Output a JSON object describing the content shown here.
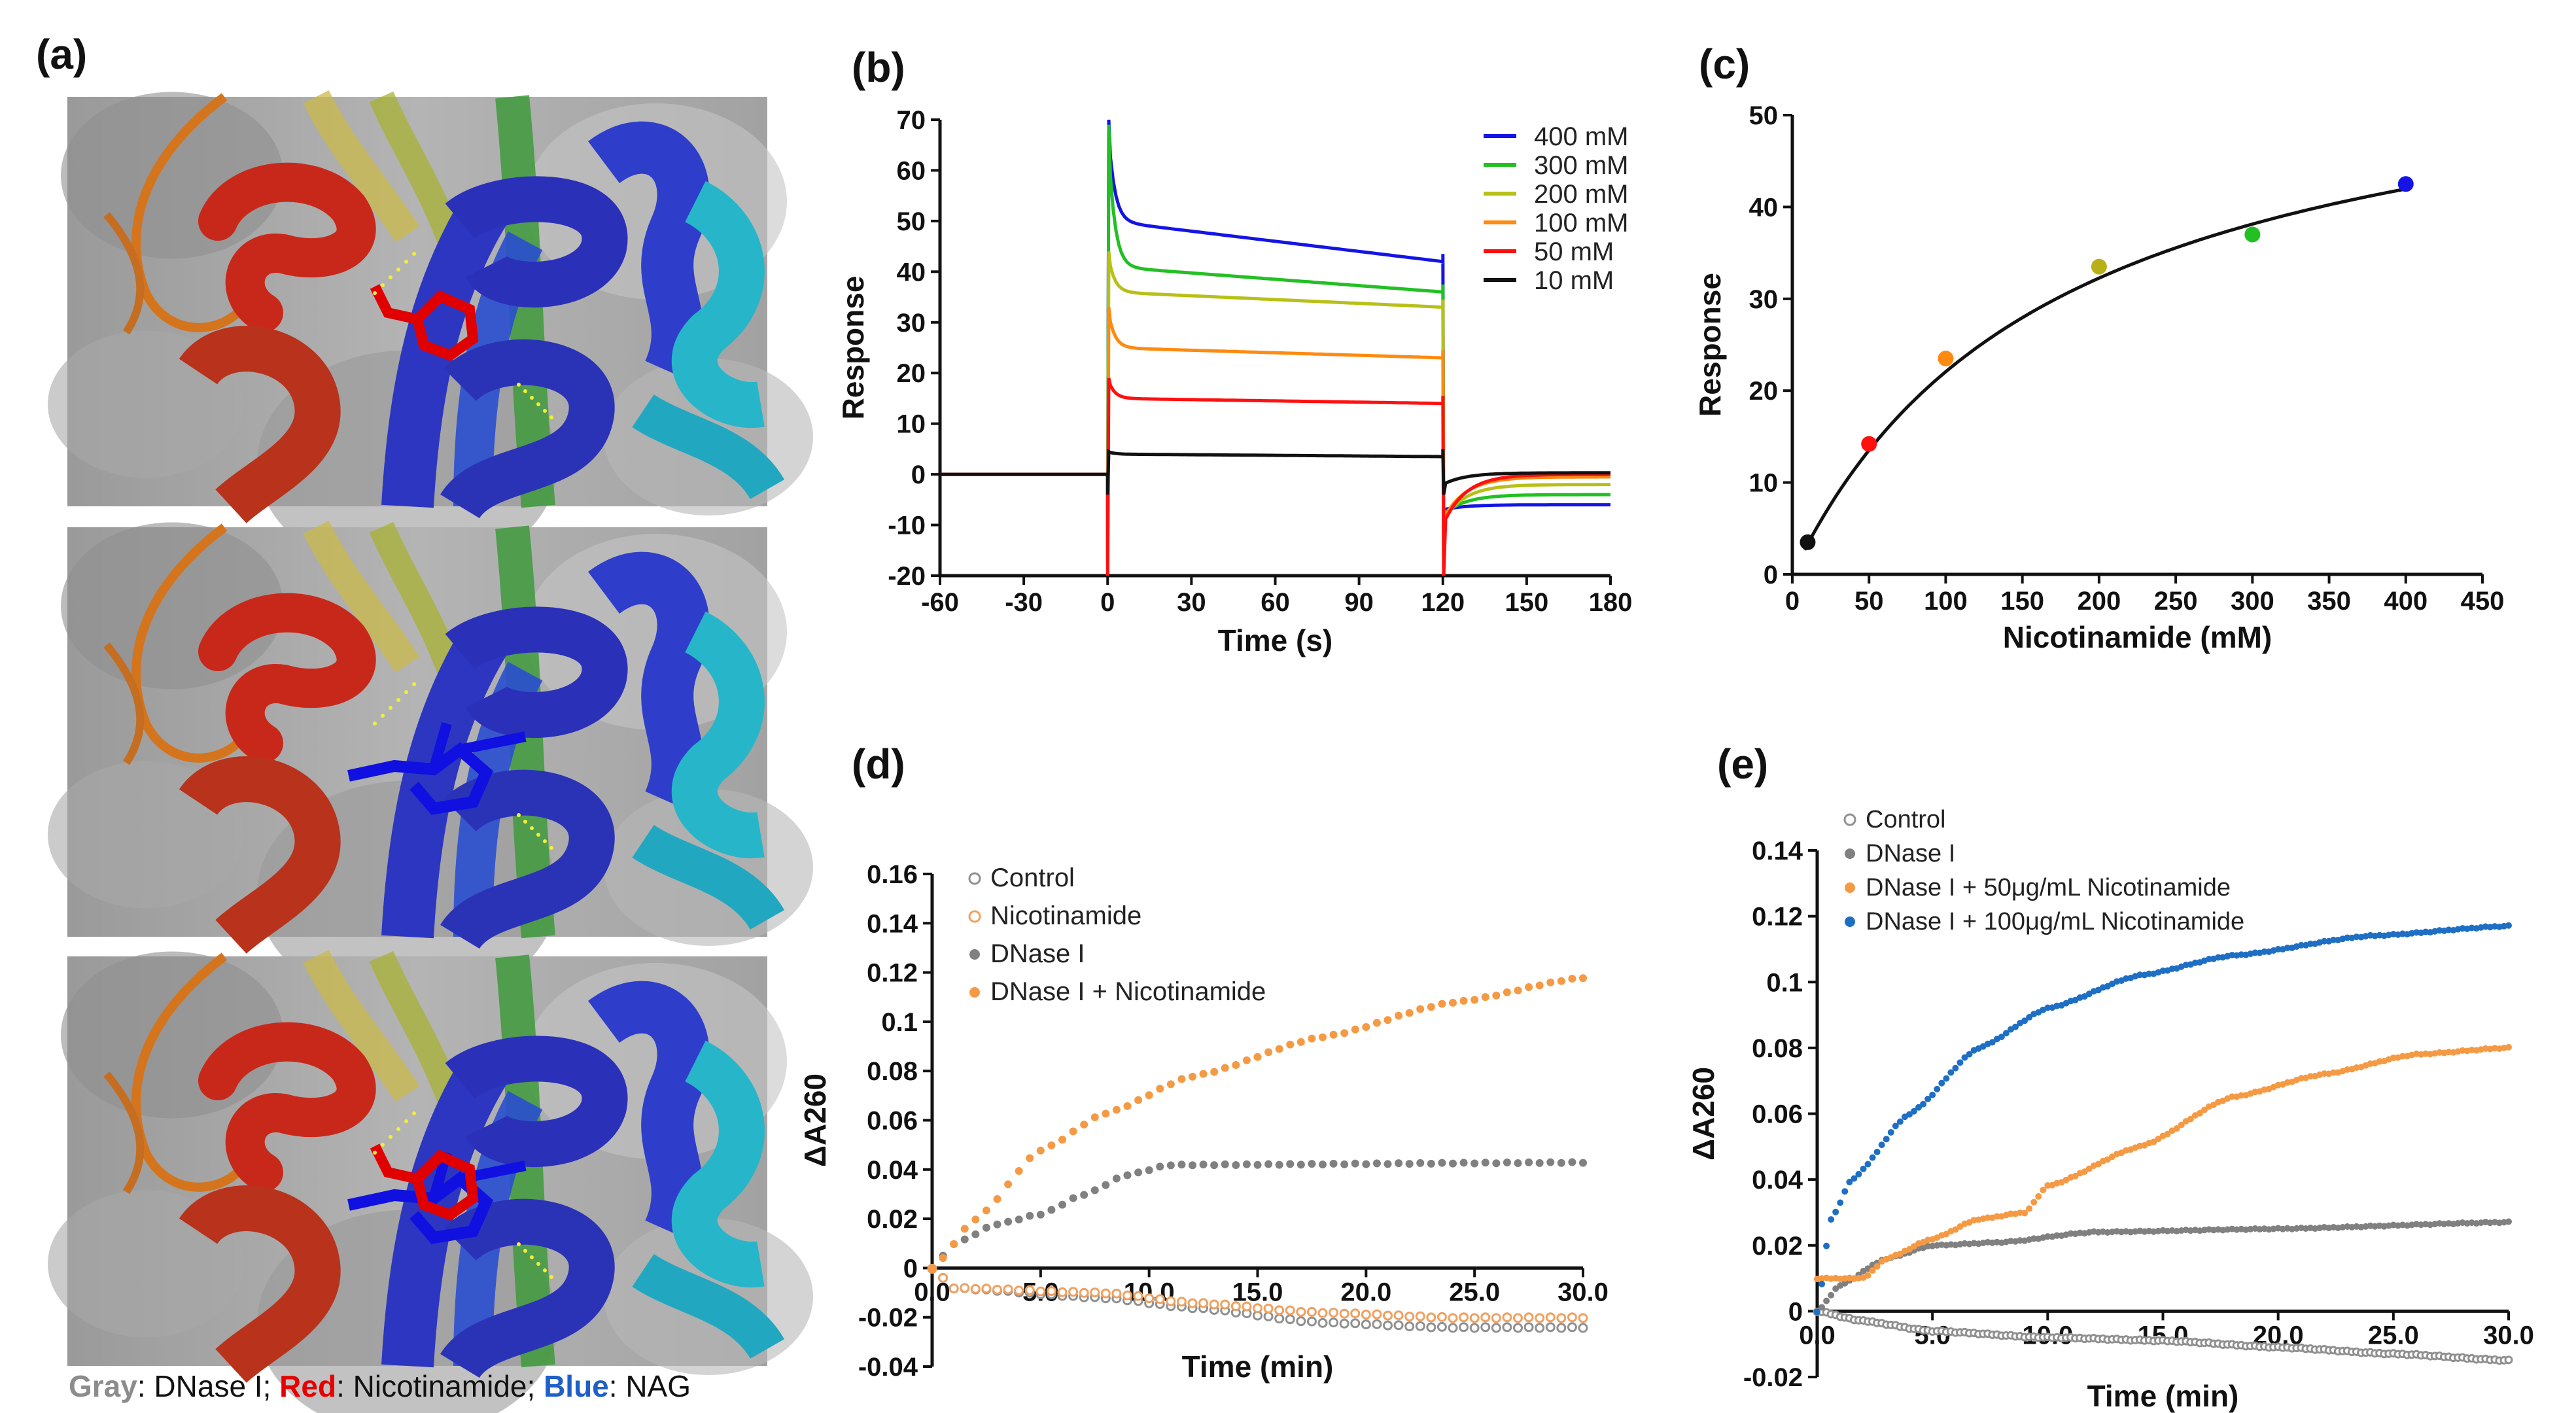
{
  "panels": {
    "a": {
      "label": "(a)",
      "caption": [
        {
          "text": "Gray",
          "color": "#8c8c8c"
        },
        {
          "text": ": DNase I; ",
          "color": "#111111"
        },
        {
          "text": "Red",
          "color": "#e60000"
        },
        {
          "text": ": Nicotinamide; ",
          "color": "#111111"
        },
        {
          "text": "Blue",
          "color": "#1f5fc8"
        },
        {
          "text": ": NAG",
          "color": "#111111"
        }
      ],
      "image_views": [
        "nicotinamide-bound",
        "nag-bound",
        "overlay"
      ]
    },
    "b": {
      "label": "(b)"
    },
    "c": {
      "label": "(c)"
    },
    "d": {
      "label": "(d)"
    },
    "e": {
      "label": "(e)"
    }
  },
  "chart_data": [
    {
      "id": "b",
      "type": "line",
      "xlabel": "Time (s)",
      "ylabel": "Response",
      "xlim": [
        -60,
        180
      ],
      "ylim": [
        -20,
        70
      ],
      "xticks": [
        -60,
        -30,
        0,
        30,
        60,
        90,
        120,
        150,
        180
      ],
      "yticks": [
        -20,
        -10,
        0,
        10,
        20,
        30,
        40,
        50,
        60,
        70
      ],
      "legend_position": "top-right",
      "series": [
        {
          "name": "400 mM",
          "color": "#1414e6",
          "peak": 70,
          "dip": -14,
          "plateau_start": 50,
          "plateau_end": 42,
          "dissoc_end": -6
        },
        {
          "name": "300 mM",
          "color": "#22c022",
          "peak": 69,
          "dip": -16,
          "plateau_start": 41,
          "plateau_end": 36,
          "dissoc_end": -4
        },
        {
          "name": "200 mM",
          "color": "#b8c018",
          "peak": 44,
          "dip": -18,
          "plateau_start": 36,
          "plateau_end": 33,
          "dissoc_end": -2
        },
        {
          "name": "100 mM",
          "color": "#ff8a10",
          "peak": 33,
          "dip": -18,
          "plateau_start": 25,
          "plateau_end": 23,
          "dissoc_end": -0.5
        },
        {
          "name": "50 mM",
          "color": "#ff1010",
          "peak": 19,
          "dip": -20,
          "plateau_start": 15,
          "plateau_end": 14,
          "dissoc_end": 0
        },
        {
          "name": "10 mM",
          "color": "#111111",
          "peak": 4.5,
          "dip": -4,
          "plateau_start": 4,
          "plateau_end": 3.5,
          "dissoc_end": 0.3
        }
      ]
    },
    {
      "id": "c",
      "type": "scatter",
      "xlabel": "Nicotinamide (mM)",
      "ylabel": "Response",
      "xlim": [
        0,
        450
      ],
      "ylim": [
        0,
        50
      ],
      "xticks": [
        0,
        50,
        100,
        150,
        200,
        250,
        300,
        350,
        400,
        450
      ],
      "yticks": [
        0,
        10,
        20,
        30,
        40,
        50
      ],
      "points": [
        {
          "x": 10,
          "y": 3.5,
          "color": "#111111"
        },
        {
          "x": 50,
          "y": 14.2,
          "color": "#ff1010"
        },
        {
          "x": 100,
          "y": 23.5,
          "color": "#ff8a10"
        },
        {
          "x": 200,
          "y": 33.5,
          "color": "#b8b018"
        },
        {
          "x": 300,
          "y": 37,
          "color": "#22c022"
        },
        {
          "x": 400,
          "y": 42.5,
          "color": "#1414e6"
        }
      ],
      "fit": {
        "rmax": 60,
        "kd": 172
      }
    },
    {
      "id": "d",
      "type": "scatter",
      "xlabel": "Time (min)",
      "ylabel": "ΔA260",
      "xlim": [
        0,
        30
      ],
      "ylim": [
        -0.04,
        0.16
      ],
      "xticks": [
        "0.0",
        "5.0",
        "10.0",
        "15.0",
        "20.0",
        "25.0",
        "30.0"
      ],
      "yticks": [
        "-0.04",
        "-0.02",
        "0",
        "0.02",
        "0.04",
        "0.06",
        "0.08",
        "0.1",
        "0.12",
        "0.14",
        "0.16"
      ],
      "legend_position": "top-left",
      "series": [
        {
          "name": "Control",
          "color": "#909090",
          "style": "open",
          "knots": [
            [
              0,
              0
            ],
            [
              1,
              -0.008
            ],
            [
              8,
              -0.012
            ],
            [
              12,
              -0.016
            ],
            [
              18,
              -0.022
            ],
            [
              24,
              -0.024
            ],
            [
              30,
              -0.024
            ]
          ]
        },
        {
          "name": "Nicotinamide",
          "color": "#f0a060",
          "style": "open",
          "knots": [
            [
              0,
              0
            ],
            [
              1,
              -0.008
            ],
            [
              8,
              -0.01
            ],
            [
              12,
              -0.014
            ],
            [
              18,
              -0.018
            ],
            [
              24,
              -0.02
            ],
            [
              30,
              -0.02
            ]
          ]
        },
        {
          "name": "DNase I",
          "color": "#808080",
          "style": "filled",
          "knots": [
            [
              0,
              0
            ],
            [
              1,
              0.01
            ],
            [
              3,
              0.018
            ],
            [
              5,
              0.022
            ],
            [
              7,
              0.03
            ],
            [
              9,
              0.038
            ],
            [
              11,
              0.042
            ],
            [
              30,
              0.043
            ]
          ]
        },
        {
          "name": "DNase I + Nicotinamide",
          "color": "#f59a44",
          "style": "filled",
          "knots": [
            [
              0,
              0
            ],
            [
              2,
              0.02
            ],
            [
              5,
              0.048
            ],
            [
              8,
              0.063
            ],
            [
              12,
              0.078
            ],
            [
              18,
              0.094
            ],
            [
              24,
              0.108
            ],
            [
              30,
              0.118
            ]
          ]
        }
      ]
    },
    {
      "id": "e",
      "type": "scatter",
      "xlabel": "Time (min)",
      "ylabel": "ΔA260",
      "xlim": [
        0,
        30
      ],
      "ylim": [
        -0.02,
        0.14
      ],
      "xticks": [
        "0.0",
        "5.0",
        "10.0",
        "15.0",
        "20.0",
        "25.0",
        "30.0"
      ],
      "yticks": [
        "-0.02",
        "0",
        "0.02",
        "0.04",
        "0.06",
        "0.08",
        "0.1",
        "0.12",
        "0.14"
      ],
      "legend_position": "top-left",
      "series": [
        {
          "name": "Control",
          "color": "#909090",
          "style": "open",
          "knots": [
            [
              0,
              0
            ],
            [
              2,
              -0.003
            ],
            [
              5,
              -0.006
            ],
            [
              10,
              -0.008
            ],
            [
              15,
              -0.009
            ],
            [
              20,
              -0.011
            ],
            [
              25,
              -0.013
            ],
            [
              30,
              -0.015
            ]
          ]
        },
        {
          "name": "DNase I",
          "color": "#808080",
          "style": "filled",
          "knots": [
            [
              0,
              0
            ],
            [
              1,
              0.008
            ],
            [
              3,
              0.016
            ],
            [
              5,
              0.02
            ],
            [
              8,
              0.021
            ],
            [
              12,
              0.024
            ],
            [
              20,
              0.025
            ],
            [
              30,
              0.027
            ]
          ]
        },
        {
          "name": "DNase I + 50μg/mL Nicotinamide",
          "color": "#f59a44",
          "style": "filled",
          "knots": [
            [
              0,
              0.01
            ],
            [
              2,
              0.01
            ],
            [
              3,
              0.016
            ],
            [
              5,
              0.022
            ],
            [
              7,
              0.028
            ],
            [
              9,
              0.03
            ],
            [
              10,
              0.038
            ],
            [
              14,
              0.05
            ],
            [
              18,
              0.065
            ],
            [
              22,
              0.072
            ],
            [
              26,
              0.078
            ],
            [
              30,
              0.08
            ]
          ]
        },
        {
          "name": "DNase I + 100μg/mL Nicotinamide",
          "color": "#1e6fc4",
          "style": "filled",
          "knots": [
            [
              0,
              0
            ],
            [
              0.6,
              0.028
            ],
            [
              1.5,
              0.04
            ],
            [
              4,
              0.06
            ],
            [
              7,
              0.08
            ],
            [
              10,
              0.092
            ],
            [
              14,
              0.102
            ],
            [
              18,
              0.108
            ],
            [
              24,
              0.114
            ],
            [
              30,
              0.117
            ]
          ]
        }
      ]
    }
  ]
}
